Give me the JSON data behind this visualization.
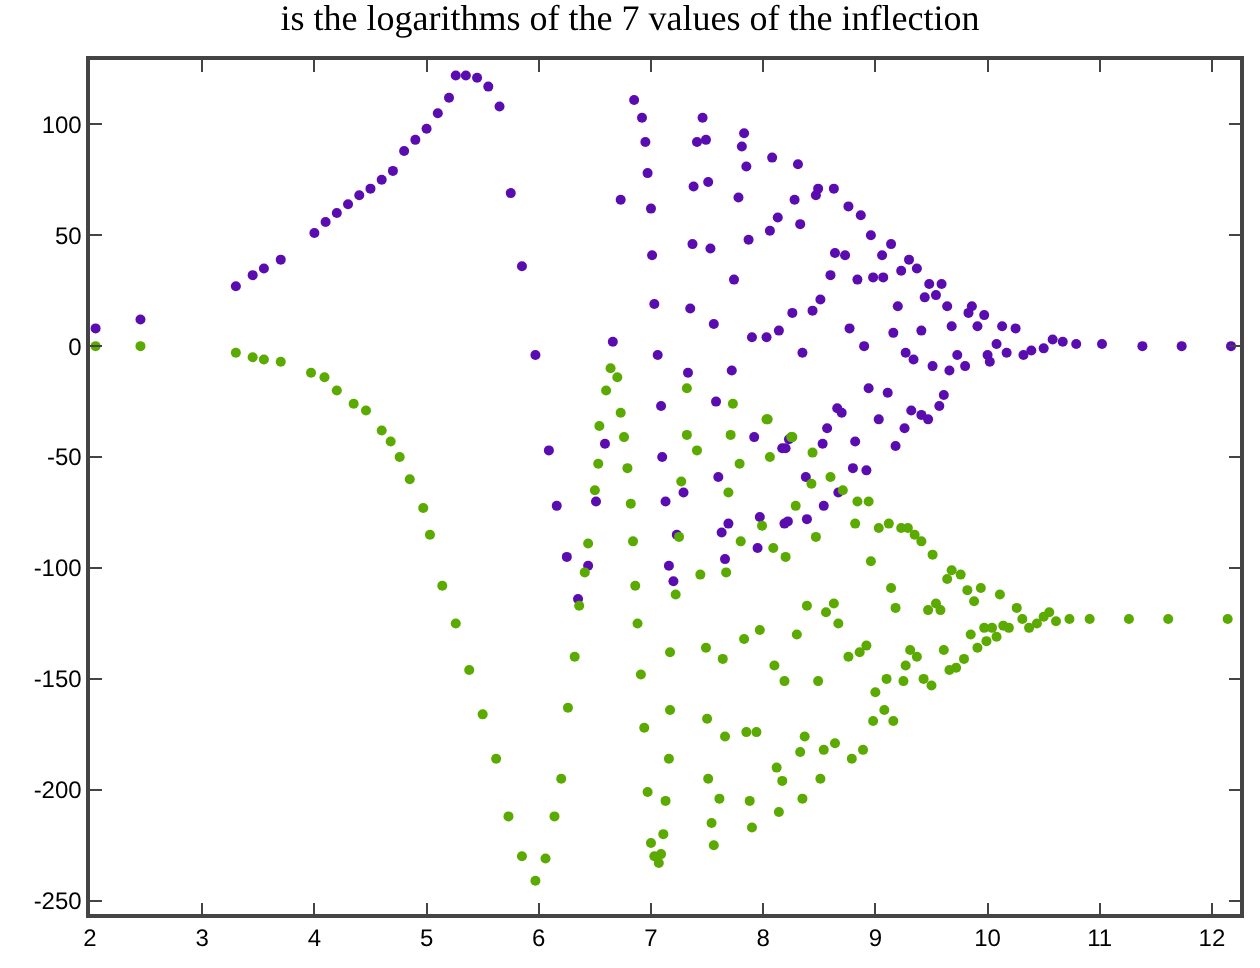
{
  "chart_data": {
    "type": "scatter",
    "title": "is the logarithms of the 7 values of the inflection",
    "xlim": [
      2,
      12.25
    ],
    "ylim": [
      -256,
      129
    ],
    "xticks": [
      2,
      3,
      4,
      5,
      6,
      7,
      8,
      9,
      10,
      11,
      12
    ],
    "yticks": [
      -250,
      -200,
      -150,
      -100,
      -50,
      0,
      50,
      100
    ],
    "marker": "circle",
    "series": [
      {
        "color": "#5a0cb0",
        "x": [
          2.05,
          2.45,
          3.3,
          3.45,
          3.55,
          3.7,
          4.0,
          4.1,
          4.2,
          4.3,
          4.4,
          4.5,
          4.6,
          4.7,
          4.8,
          4.9,
          5.0,
          5.1,
          5.2,
          5.26,
          5.35,
          5.45,
          5.55,
          5.65,
          5.75,
          5.85,
          5.97,
          6.09,
          6.16,
          6.25,
          6.35,
          6.44,
          6.51,
          6.59,
          6.66,
          6.73,
          6.85,
          6.92,
          6.95,
          6.97,
          7.0,
          7.01,
          7.03,
          7.06,
          7.09,
          7.1,
          7.13,
          7.16,
          7.2,
          7.23,
          7.29,
          7.38,
          7.41,
          7.46,
          7.49,
          7.51,
          7.53,
          7.37,
          7.35,
          7.56,
          7.72,
          7.74,
          7.78,
          7.81,
          7.83,
          7.85,
          7.87,
          7.9,
          8.03,
          8.06,
          8.08,
          8.13,
          8.14,
          8.26,
          8.28,
          8.31,
          8.33,
          8.35,
          8.44,
          8.47,
          8.49,
          8.51,
          8.6,
          8.63,
          8.64,
          8.73,
          8.76,
          8.77,
          8.84,
          8.87,
          8.9,
          8.96,
          8.98,
          9.06,
          9.07,
          9.14,
          9.16,
          9.2,
          9.23,
          9.27,
          9.3,
          9.34,
          9.37,
          9.41,
          9.44,
          9.48,
          9.51,
          9.54,
          9.59,
          9.64,
          9.66,
          9.68,
          9.73,
          9.8,
          9.83,
          9.86,
          9.91,
          9.97,
          10.0,
          10.02,
          10.08,
          10.13,
          10.17,
          10.25,
          10.32,
          10.39,
          10.5,
          10.58,
          10.67,
          10.79,
          11.02,
          11.38,
          11.73,
          12.17,
          7.33,
          7.58,
          7.92,
          8.17,
          8.23,
          8.53,
          8.57,
          8.66,
          8.7,
          8.82,
          8.94,
          9.03,
          9.11,
          9.18,
          9.26,
          9.32,
          9.41,
          9.47,
          9.57,
          9.61,
          7.6,
          7.63,
          7.66,
          7.69,
          7.95,
          7.97,
          8.19,
          8.22,
          8.39,
          8.54,
          8.67,
          8.8,
          8.92,
          8.2,
          8.38
        ],
        "values": [
          8,
          12,
          27,
          32,
          35,
          39,
          51,
          56,
          60,
          64,
          68,
          71,
          75,
          79,
          88,
          93,
          98,
          105,
          112,
          122,
          122,
          121,
          117,
          108,
          69,
          36,
          -4,
          -47,
          -72,
          -95,
          -114,
          -99,
          -70,
          -44,
          2,
          66,
          111,
          103,
          92,
          78,
          62,
          41,
          19,
          -4,
          -27,
          -50,
          -70,
          -99,
          -106,
          -85,
          -66,
          72,
          92,
          103,
          93,
          74,
          44,
          46,
          17,
          10,
          -11,
          30,
          67,
          90,
          96,
          81,
          48,
          4,
          4,
          52,
          85,
          58,
          7,
          15,
          66,
          82,
          55,
          -3,
          16,
          68,
          71,
          21,
          32,
          71,
          42,
          41,
          63,
          8,
          30,
          59,
          0,
          50,
          31,
          41,
          31,
          46,
          6,
          18,
          34,
          -3,
          39,
          -6,
          35,
          7,
          22,
          28,
          -9,
          23,
          28,
          18,
          -11,
          9,
          -4,
          -9,
          15,
          18,
          9,
          14,
          -4,
          -7,
          1,
          9,
          -3,
          8,
          -4,
          -2,
          -1,
          3,
          2,
          1,
          1,
          0,
          0,
          0,
          -12,
          -25,
          -41,
          -46,
          -42,
          -44,
          -37,
          -28,
          -30,
          -43,
          -19,
          -33,
          -21,
          -45,
          -37,
          -29,
          -31,
          -33,
          -27,
          -22,
          -59,
          -84,
          -96,
          -80,
          -91,
          -77,
          -80,
          -79,
          -78,
          -72,
          -66,
          -55,
          -56,
          -46,
          -59
        ]
      },
      {
        "color": "#5aaa00",
        "x": [
          2.05,
          2.45,
          3.3,
          3.45,
          3.55,
          3.7,
          3.97,
          4.09,
          4.2,
          4.35,
          4.46,
          4.6,
          4.68,
          4.76,
          4.85,
          4.97,
          5.03,
          5.14,
          5.26,
          5.38,
          5.5,
          5.62,
          5.73,
          5.85,
          5.97,
          6.06,
          6.14,
          6.2,
          6.26,
          6.32,
          6.36,
          6.41,
          6.44,
          6.5,
          6.53,
          6.54,
          6.6,
          6.64,
          6.7,
          6.73,
          6.76,
          6.79,
          6.82,
          6.84,
          6.86,
          6.88,
          6.91,
          6.94,
          6.97,
          7.0,
          7.03,
          7.07,
          7.17,
          7.17,
          7.16,
          7.13,
          7.11,
          7.09,
          7.22,
          7.25,
          7.27,
          7.32,
          7.41,
          7.44,
          7.49,
          7.5,
          7.51,
          7.54,
          7.56,
          7.61,
          7.64,
          7.66,
          7.67,
          7.69,
          7.71,
          7.79,
          7.8,
          7.83,
          7.85,
          7.88,
          7.9,
          7.94,
          7.97,
          7.99,
          8.04,
          8.06,
          8.09,
          8.1,
          8.12,
          8.14,
          8.17,
          8.19,
          8.2,
          8.25,
          8.29,
          8.3,
          8.33,
          8.35,
          8.37,
          8.39,
          8.43,
          8.47,
          8.49,
          8.51,
          8.54,
          8.56,
          8.6,
          8.63,
          8.64,
          8.67,
          8.71,
          8.76,
          8.79,
          8.82,
          8.84,
          8.86,
          8.89,
          8.92,
          8.94,
          8.96,
          8.98,
          9.0,
          9.03,
          9.08,
          9.1,
          9.12,
          9.14,
          9.16,
          9.18,
          9.23,
          9.25,
          9.27,
          9.29,
          9.31,
          9.35,
          9.37,
          9.41,
          9.43,
          9.47,
          9.5,
          9.51,
          9.54,
          9.58,
          9.61,
          9.64,
          9.66,
          9.68,
          9.72,
          9.76,
          9.79,
          9.82,
          9.85,
          9.88,
          9.91,
          9.94,
          9.97,
          9.99,
          10.04,
          10.08,
          10.11,
          10.14,
          10.19,
          10.26,
          10.31,
          10.37,
          10.44,
          10.5,
          10.55,
          10.61,
          10.73,
          10.91,
          11.26,
          11.61,
          12.14,
          7.32,
          7.73,
          8.03,
          8.26,
          8.44
        ],
        "values": [
          0,
          0,
          -3,
          -5,
          -6,
          -7,
          -12,
          -14,
          -20,
          -26,
          -29,
          -38,
          -43,
          -50,
          -60,
          -73,
          -85,
          -108,
          -125,
          -146,
          -166,
          -186,
          -212,
          -230,
          -241,
          -231,
          -212,
          -195,
          -163,
          -140,
          -117,
          -102,
          -89,
          -65,
          -53,
          -36,
          -20,
          -10,
          -14,
          -30,
          -41,
          -55,
          -71,
          -88,
          -108,
          -125,
          -148,
          -172,
          -201,
          -224,
          -230,
          -233,
          -138,
          -164,
          -186,
          -205,
          -220,
          -229,
          -112,
          -86,
          -61,
          -40,
          -47,
          -103,
          -136,
          -168,
          -195,
          -215,
          -225,
          -204,
          -141,
          -176,
          -102,
          -66,
          -40,
          -53,
          -88,
          -132,
          -174,
          -205,
          -217,
          -174,
          -128,
          -81,
          -33,
          -50,
          -91,
          -144,
          -190,
          -210,
          -196,
          -151,
          -95,
          -41,
          -72,
          -130,
          -183,
          -204,
          -176,
          -117,
          -62,
          -86,
          -151,
          -195,
          -182,
          -120,
          -59,
          -116,
          -179,
          -125,
          -65,
          -140,
          -186,
          -80,
          -70,
          -138,
          -182,
          -135,
          -70,
          -97,
          -169,
          -156,
          -82,
          -164,
          -150,
          -80,
          -109,
          -169,
          -118,
          -82,
          -151,
          -144,
          -82,
          -137,
          -85,
          -140,
          -88,
          -150,
          -119,
          -153,
          -94,
          -116,
          -119,
          -137,
          -105,
          -146,
          -101,
          -145,
          -103,
          -141,
          -110,
          -130,
          -115,
          -136,
          -109,
          -127,
          -133,
          -127,
          -131,
          -112,
          -126,
          -127,
          -118,
          -123,
          -127,
          -125,
          -122,
          -120,
          -124,
          -123,
          -123,
          -123,
          -123,
          -123,
          -19,
          -26,
          -33,
          -41,
          -48
        ]
      }
    ]
  }
}
